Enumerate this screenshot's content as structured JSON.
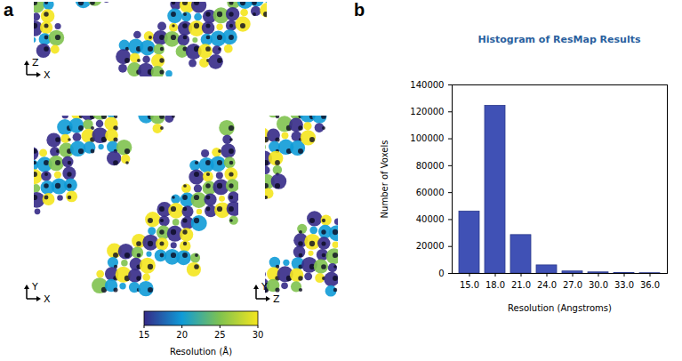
{
  "chart_data": [
    {
      "type": "image",
      "panel": "a",
      "views": [
        {
          "horizontal": "X",
          "vertical": "Z"
        },
        {
          "horizontal": "X",
          "vertical": "Y"
        },
        {
          "horizontal": "Z",
          "vertical": "Y"
        }
      ],
      "colorbar": {
        "label": "Resolution (Å)",
        "range": [
          15,
          30
        ],
        "ticks": [
          15,
          20,
          25,
          30
        ],
        "colors": [
          "#352a87",
          "#0f9bd7",
          "#7fc24f",
          "#f4e61e"
        ]
      }
    },
    {
      "type": "bar",
      "panel": "b",
      "title": "Histogram of ResMap Results",
      "x_label": "Resolution (Angstroms)",
      "y_label": "Number of Voxels",
      "categories": [
        "15.0",
        "18.0",
        "21.0",
        "24.0",
        "27.0",
        "30.0",
        "33.0",
        "36.0"
      ],
      "values": [
        46000,
        124500,
        28500,
        6000,
        1500,
        800,
        400,
        200
      ],
      "color": "#4051b5",
      "ylim": [
        0,
        140000
      ],
      "yticks": [
        0,
        20000,
        40000,
        60000,
        80000,
        100000,
        120000,
        140000
      ],
      "grid": false
    }
  ]
}
